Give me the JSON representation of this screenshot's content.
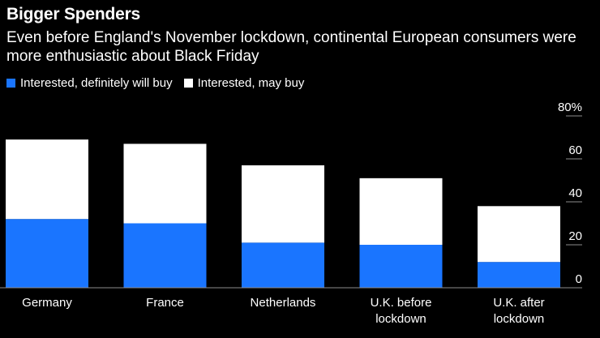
{
  "chart_data": {
    "type": "bar",
    "stacked": true,
    "title": "Bigger Spenders",
    "subtitle": "Even before England's November lockdown, continental European consumers were more enthusiastic about Black Friday",
    "categories": [
      [
        "Germany"
      ],
      [
        "France"
      ],
      [
        "Netherlands"
      ],
      [
        "U.K. before",
        "lockdown"
      ],
      [
        "U.K. after",
        "lockdown"
      ]
    ],
    "series": [
      {
        "name": "Interested, definitely will buy",
        "color": "#1a75ff",
        "values": [
          32,
          30,
          21,
          20,
          12
        ]
      },
      {
        "name": "Interested, may buy",
        "color": "#ffffff",
        "values": [
          37,
          37,
          36,
          31,
          26
        ]
      }
    ],
    "ylim": [
      0,
      80
    ],
    "yticks": [
      0,
      20,
      40,
      60,
      80
    ],
    "ytick_labels": [
      "0",
      "20",
      "40",
      "60",
      "80%"
    ],
    "xlabel": "",
    "ylabel": "",
    "legend_position": "top-left"
  }
}
